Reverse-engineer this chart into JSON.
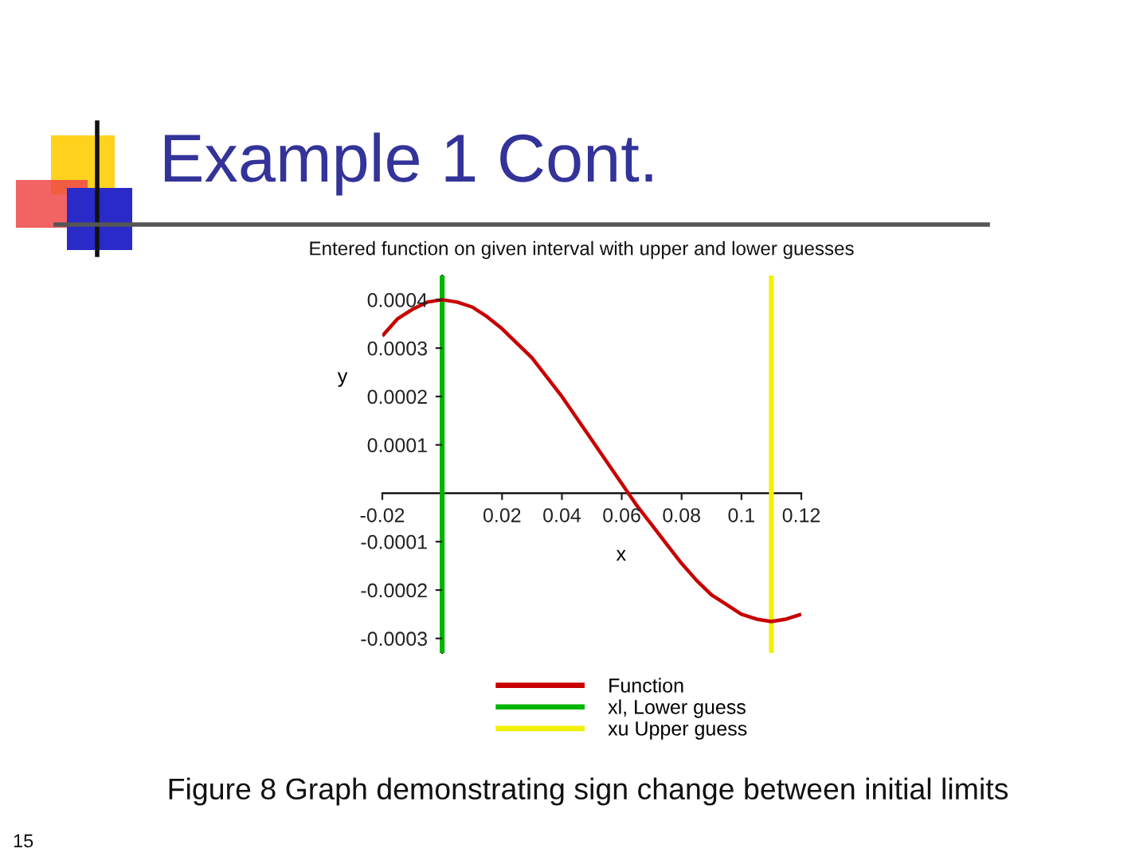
{
  "chart_data": {
    "type": "line",
    "title": "Example 1 Cont.",
    "subtitle": "Entered function on given interval with upper and lower guesses",
    "xlabel": "x",
    "ylabel": "y",
    "series": [
      {
        "name": "Function",
        "color": "#c80000",
        "x": [
          -0.02,
          -0.015,
          -0.01,
          -0.005,
          0,
          0.005,
          0.01,
          0.015,
          0.02,
          0.025,
          0.03,
          0.035,
          0.04,
          0.045,
          0.05,
          0.055,
          0.06,
          0.065,
          0.07,
          0.075,
          0.08,
          0.085,
          0.09,
          0.095,
          0.1,
          0.105,
          0.11,
          0.115,
          0.12
        ],
        "values": [
          0.000325,
          0.00036,
          0.00038,
          0.000395,
          0.0004,
          0.000395,
          0.000385,
          0.000365,
          0.00034,
          0.00031,
          0.00028,
          0.00024,
          0.0002,
          0.000155,
          0.00011,
          6.5e-05,
          2e-05,
          -2.5e-05,
          -6.5e-05,
          -0.000105,
          -0.000145,
          -0.00018,
          -0.00021,
          -0.00023,
          -0.00025,
          -0.00026,
          -0.000265,
          -0.00026,
          -0.00025
        ]
      },
      {
        "name": "xl, Lower guess",
        "color": "#00b400",
        "x": [
          0,
          0
        ],
        "values": [
          -0.00033,
          0.00045
        ]
      },
      {
        "name": "xu Upper guess",
        "color": "#f0f000",
        "x": [
          0.11,
          0.11
        ],
        "values": [
          -0.00033,
          0.00045
        ]
      }
    ],
    "xlim": [
      -0.02,
      0.12
    ],
    "xticks": [
      -0.02,
      0.02,
      0.04,
      0.06,
      0.08,
      0.1,
      0.12
    ],
    "ylim": [
      -0.00033,
      0.00045
    ],
    "yticks": [
      -0.0003,
      -0.0002,
      -0.0001,
      0.0001,
      0.0002,
      0.0003,
      0.0004
    ],
    "legend": "bottom",
    "annotations": [
      "Figure 8 Graph demonstrating sign change between initial limits",
      "15"
    ]
  }
}
